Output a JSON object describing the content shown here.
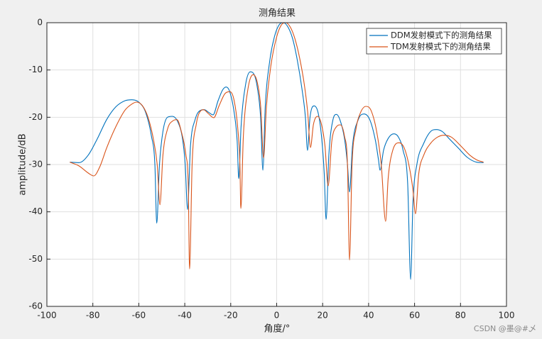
{
  "chart_data": {
    "type": "line",
    "title": "测角结果",
    "x_label": "角度/°",
    "y_label": "amplitude/dB",
    "xlim": [
      -100,
      100
    ],
    "xticks": [
      -100,
      -80,
      -60,
      -40,
      -20,
      0,
      20,
      40,
      60,
      80,
      100
    ],
    "ylim": [
      -60,
      0
    ],
    "yticks": [
      -60,
      -50,
      -40,
      -30,
      -20,
      -10,
      0
    ],
    "grid": true,
    "legend": "northeast",
    "series": [
      {
        "name": "DDM发射模式下的测角结果",
        "color": "#0072bd",
        "x": [
          -90,
          -86,
          -82,
          -78,
          -74,
          -70,
          -66,
          -63,
          -60,
          -57,
          -54.5,
          -53,
          -52.2,
          -51,
          -49.5,
          -47.5,
          -45.5,
          -43,
          -41,
          -39.8,
          -38.8,
          -37.5,
          -35.5,
          -33,
          -31.5,
          -29.5,
          -27.7,
          -25.5,
          -23.5,
          -22,
          -20.5,
          -18.5,
          -17.2,
          -16.5,
          -15.5,
          -13.5,
          -11.5,
          -10,
          -8.5,
          -7,
          -6,
          -5,
          -3,
          -1,
          1,
          3,
          5,
          7,
          9,
          11,
          12.5,
          13.4,
          14.5,
          16.3,
          18,
          19.5,
          20.7,
          21.5,
          22.7,
          24.5,
          26,
          27.5,
          29.5,
          30.8,
          31.7,
          33,
          35.5,
          38,
          40.5,
          43,
          44.3,
          45,
          46.5,
          48.5,
          51,
          53,
          55,
          57,
          58.3,
          59.3,
          61,
          64,
          67,
          69.5,
          72,
          75,
          79,
          83,
          87,
          90
        ],
        "values": [
          -29.5,
          -29.6,
          -28,
          -24.5,
          -20.5,
          -17.8,
          -16.5,
          -16.3,
          -16.8,
          -19,
          -24,
          -30,
          -42.4,
          -30,
          -23,
          -20,
          -19.8,
          -21,
          -24.5,
          -30,
          -39.5,
          -26,
          -20.5,
          -18.5,
          -18.4,
          -19,
          -19.5,
          -16.5,
          -14.2,
          -13.6,
          -14.5,
          -19,
          -25,
          -33,
          -22,
          -13,
          -10.4,
          -10.8,
          -13.5,
          -20,
          -31.2,
          -18,
          -8,
          -3,
          -0.5,
          0,
          -1,
          -3.5,
          -8,
          -14,
          -20,
          -27,
          -20,
          -17.6,
          -19,
          -24,
          -32,
          -41.6,
          -28,
          -20.5,
          -19.4,
          -20.5,
          -24.5,
          -30,
          -35.8,
          -26,
          -20.5,
          -19.3,
          -20.5,
          -25,
          -29,
          -31.2,
          -27,
          -24.5,
          -23.5,
          -24.2,
          -27,
          -34,
          -54.3,
          -38,
          -30,
          -25.5,
          -23,
          -22.6,
          -23,
          -24.5,
          -26.5,
          -28.5,
          -29.5,
          -29.6
        ]
      },
      {
        "name": "TDM发射模式下的测角结果",
        "color": "#d95319",
        "x": [
          -90,
          -86,
          -82,
          -79.6,
          -77,
          -74,
          -70,
          -66,
          -63,
          -61,
          -58.5,
          -56,
          -53.5,
          -52,
          -50.8,
          -49.5,
          -47.5,
          -45,
          -43.4,
          -41.5,
          -39.5,
          -38.5,
          -37.9,
          -36.8,
          -35,
          -33,
          -31.8,
          -29.8,
          -27.4,
          -25,
          -22.5,
          -20.3,
          -18.5,
          -17,
          -16,
          -15.6,
          -14.5,
          -12.5,
          -10.2,
          -8.5,
          -7,
          -5.7,
          -4.5,
          -2.5,
          0,
          2,
          4,
          6,
          8,
          10,
          12,
          13.5,
          14.7,
          16,
          17.8,
          19.5,
          21,
          22.4,
          24,
          26,
          27.7,
          29.5,
          30.8,
          31.7,
          32.8,
          34.5,
          36.5,
          38.8,
          41,
          43.5,
          45.5,
          47.4,
          48.5,
          50.5,
          53.3,
          55.5,
          57.5,
          59.2,
          60.4,
          61.8,
          64,
          67,
          70,
          72.8,
          76,
          80,
          84,
          87,
          90
        ],
        "values": [
          -29.5,
          -30.3,
          -31.8,
          -32.4,
          -30.5,
          -26.5,
          -22,
          -18.5,
          -17.2,
          -16.8,
          -17.5,
          -20,
          -25,
          -30,
          -38.5,
          -28,
          -22.5,
          -20.7,
          -20.5,
          -23,
          -28,
          -34,
          -52.1,
          -30,
          -21.5,
          -18.6,
          -18.4,
          -19.2,
          -20.1,
          -17.5,
          -15,
          -14.6,
          -16.5,
          -22,
          -30,
          -39.3,
          -24,
          -14,
          -11,
          -12.5,
          -17.5,
          -28.6,
          -18,
          -9,
          -3,
          -0.5,
          0,
          -1,
          -3.5,
          -7.5,
          -13,
          -19,
          -26.4,
          -21.5,
          -19.8,
          -21.5,
          -26,
          -34.5,
          -25,
          -22,
          -21.6,
          -24,
          -30,
          -50.2,
          -30,
          -22.5,
          -19,
          -17.7,
          -18.5,
          -23,
          -30,
          -42,
          -33,
          -27,
          -25.4,
          -26.5,
          -30,
          -35,
          -40.4,
          -32,
          -28,
          -25.5,
          -24.2,
          -23.8,
          -24.2,
          -26,
          -28,
          -29,
          -29.5
        ]
      }
    ]
  },
  "watermark": "CSDN @墨@#乄"
}
